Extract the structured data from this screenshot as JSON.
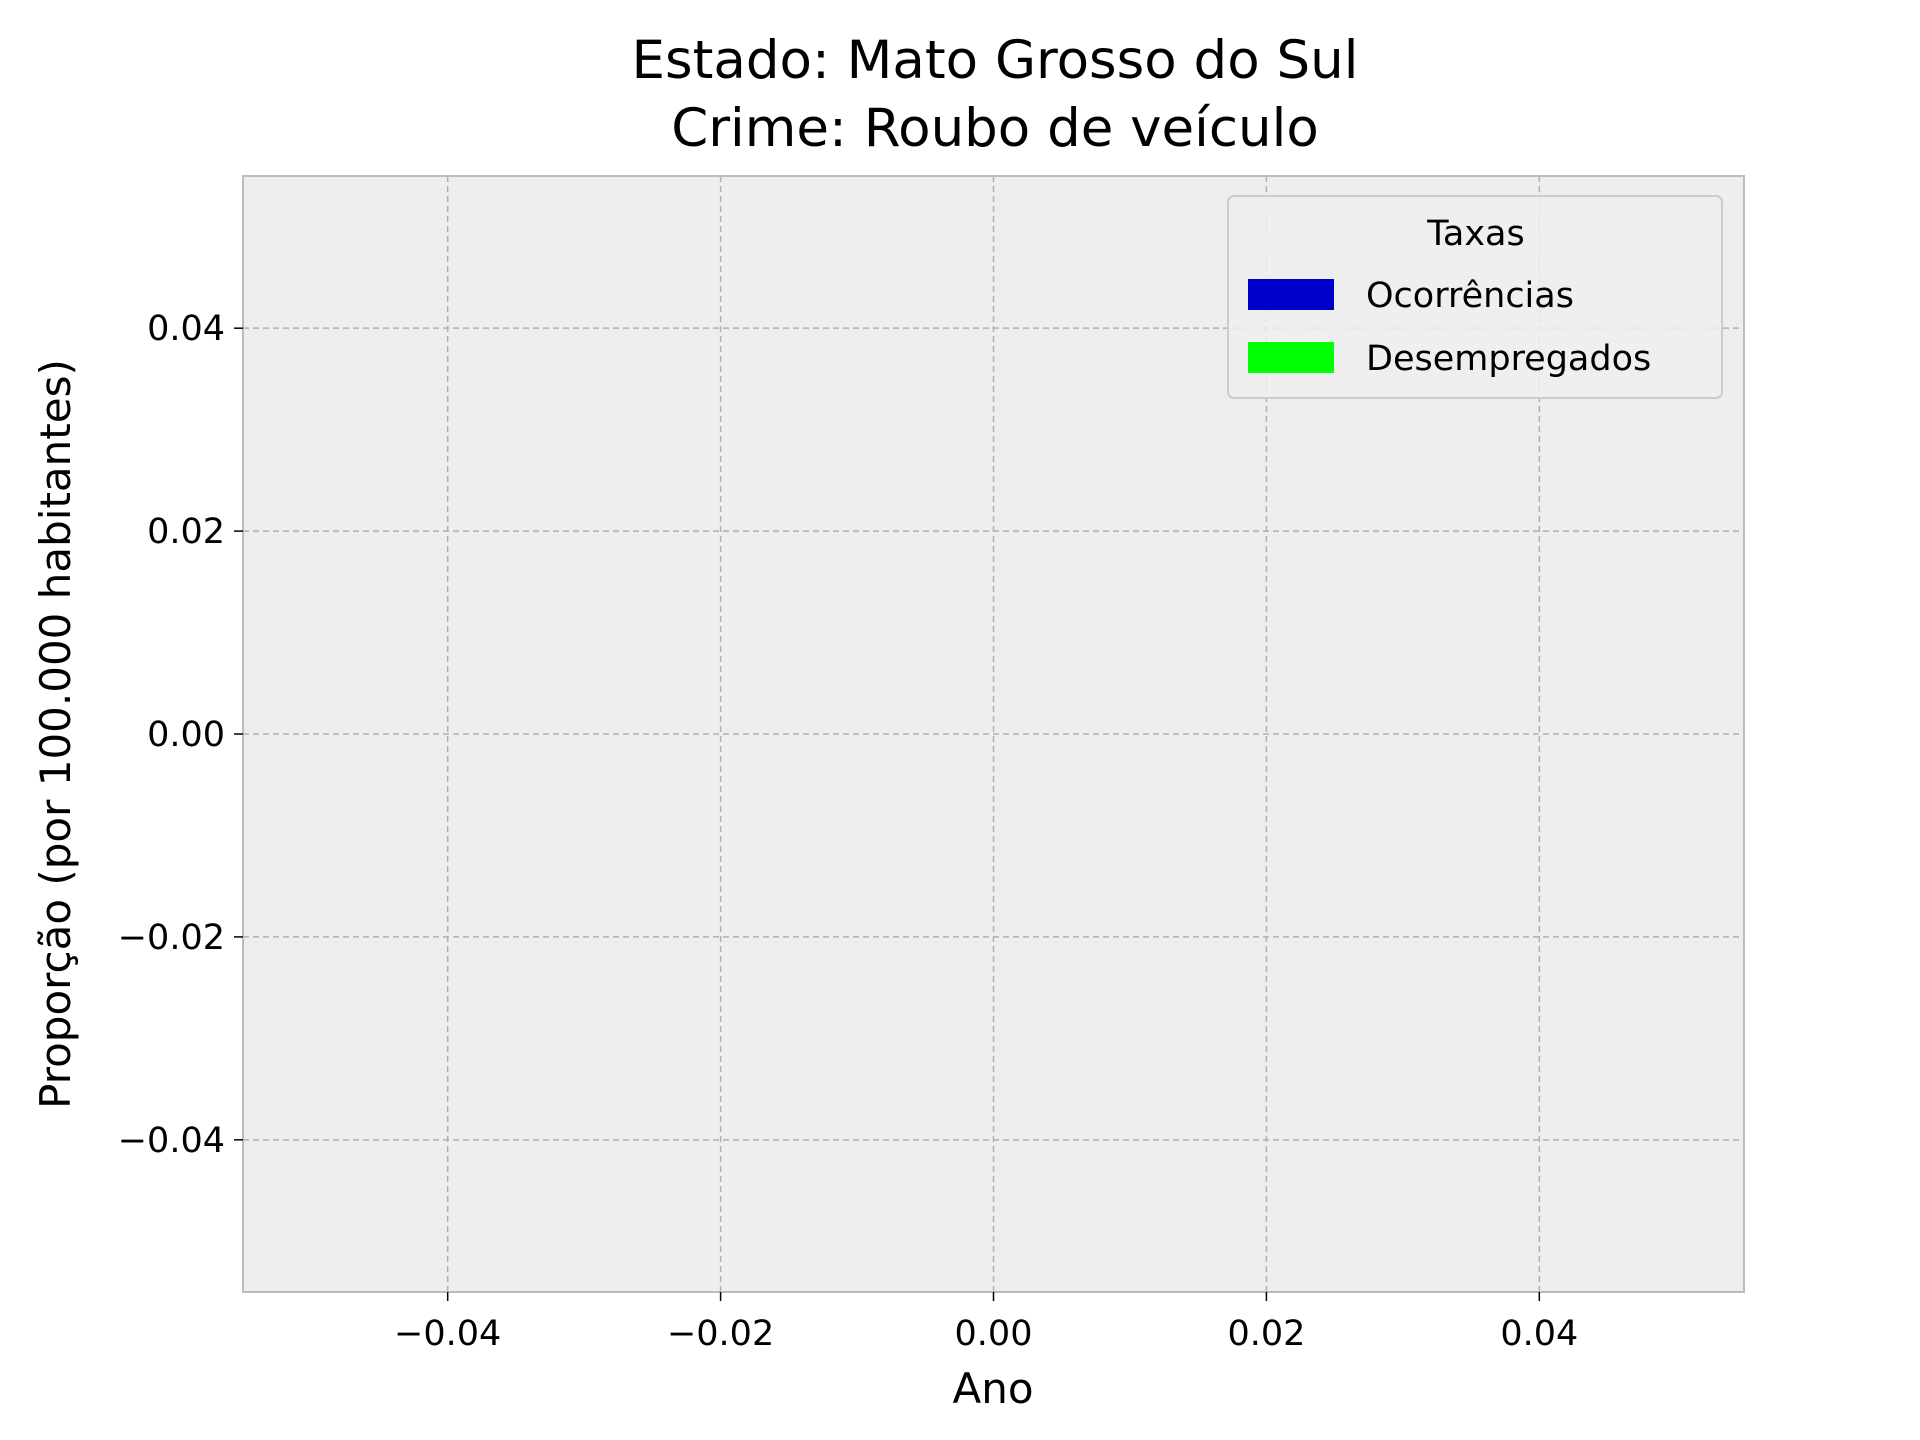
{
  "chart_data": {
    "type": "bar",
    "title_lines": [
      "Estado: Mato Grosso do Sul",
      "Crime: Roubo de veículo"
    ],
    "xlabel": "Ano",
    "ylabel": "Proporção (por 100.000 habitantes)",
    "xlim": [
      -0.055,
      0.055
    ],
    "ylim": [
      -0.055,
      0.055
    ],
    "xticks": [
      -0.04,
      -0.02,
      0.0,
      0.02,
      0.04
    ],
    "yticks": [
      -0.04,
      -0.02,
      0.0,
      0.02,
      0.04
    ],
    "xtick_labels": [
      "−0.04",
      "−0.02",
      "0.00",
      "0.02",
      "0.04"
    ],
    "ytick_labels": [
      "−0.04",
      "−0.02",
      "0.00",
      "0.02",
      "0.04"
    ],
    "grid": true,
    "legend": {
      "title": "Taxas",
      "placement": "top-right",
      "entries": [
        {
          "label": "Ocorrências",
          "color": "#0000cc"
        },
        {
          "label": "Desempregados",
          "color": "#00ff00"
        }
      ]
    },
    "series": [
      {
        "name": "Ocorrências",
        "values": [],
        "color": "#0000cc"
      },
      {
        "name": "Desempregados",
        "values": [],
        "color": "#00ff00"
      }
    ]
  },
  "colors": {
    "plot_background": "#eeeeee",
    "axes_edge": "#bcbcbc",
    "grid": "#b0b0b0"
  }
}
